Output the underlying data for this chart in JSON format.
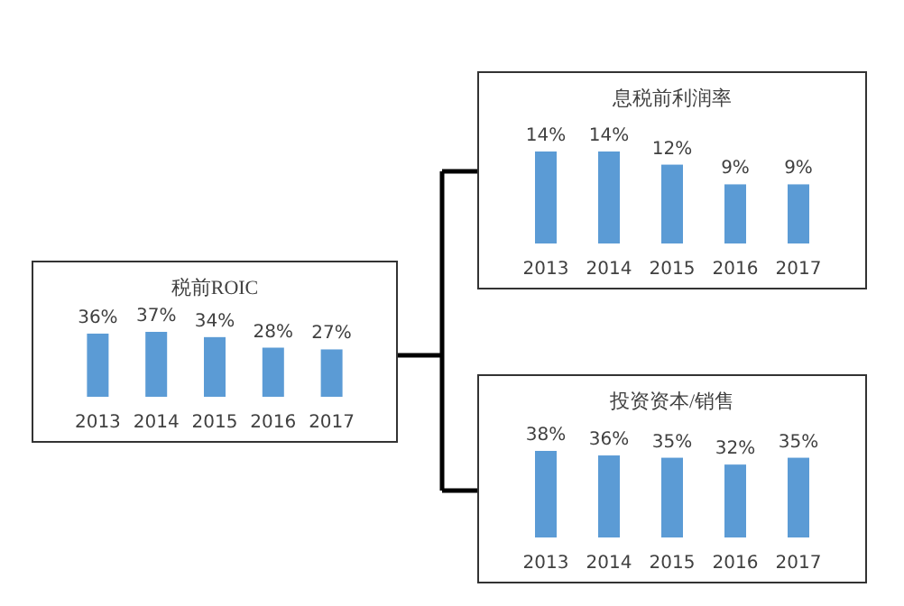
{
  "chart_data": [
    {
      "type": "bar",
      "title": "税前ROIC",
      "categories": [
        "2013",
        "2014",
        "2015",
        "2016",
        "2017"
      ],
      "values": [
        36,
        37,
        34,
        28,
        27
      ],
      "value_labels": [
        "36%",
        "37%",
        "34%",
        "28%",
        "27%"
      ],
      "color": "#5b9bd5"
    },
    {
      "type": "bar",
      "title": "息税前利润率",
      "categories": [
        "2013",
        "2014",
        "2015",
        "2016",
        "2017"
      ],
      "values": [
        14,
        14,
        12,
        9,
        9
      ],
      "value_labels": [
        "14%",
        "14%",
        "12%",
        "9%",
        "9%"
      ],
      "color": "#5b9bd5"
    },
    {
      "type": "bar",
      "title": "投资资本/销售",
      "categories": [
        "2013",
        "2014",
        "2015",
        "2016",
        "2017"
      ],
      "values": [
        38,
        36,
        35,
        32,
        35
      ],
      "value_labels": [
        "38%",
        "36%",
        "35%",
        "32%",
        "35%"
      ],
      "color": "#5b9bd5"
    }
  ]
}
